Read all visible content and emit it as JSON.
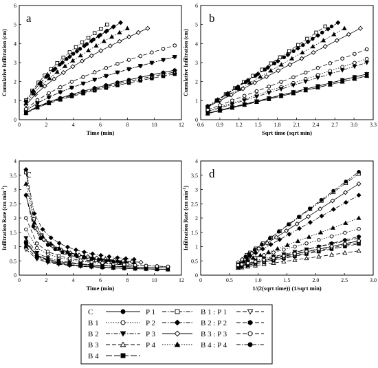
{
  "figure": {
    "legend": {
      "entries": [
        {
          "label": "C",
          "marker": "circle-filled",
          "dash": "solid"
        },
        {
          "label": "B 1",
          "marker": "circle-open",
          "dash": "dotted"
        },
        {
          "label": "B 2",
          "marker": "tri-down-filled",
          "dash": "dashdot"
        },
        {
          "label": "B 3",
          "marker": "tri-up-open",
          "dash": "dashed"
        },
        {
          "label": "B 4",
          "marker": "square-filled",
          "dash": "longdash"
        },
        {
          "label": "P 1",
          "marker": "square-open",
          "dash": "dashdot"
        },
        {
          "label": "P 2",
          "marker": "diamond-filled",
          "dash": "dashdot"
        },
        {
          "label": "P 3",
          "marker": "diamond-open",
          "dash": "solid"
        },
        {
          "label": "P 4",
          "marker": "tri-up-filled",
          "dash": "dotted"
        },
        {
          "label": "B 1 : P 1",
          "marker": "tri-down-open",
          "dash": "dashed"
        },
        {
          "label": "B 2 : P 2",
          "marker": "hexagon-filled",
          "dash": "dashed"
        },
        {
          "label": "B 3 : P 3",
          "marker": "hexagon-open",
          "dash": "dashed"
        },
        {
          "label": "B 4 : P 4",
          "marker": "circle-filled",
          "dash": "dashdot"
        }
      ]
    }
  },
  "chart_data": [
    {
      "panel": "a",
      "type": "line",
      "xlabel": "Time (min)",
      "ylabel": "Cumulative Infiltration (cm)",
      "xlim": [
        0,
        12
      ],
      "ylim": [
        0,
        6
      ],
      "xticks": [
        "0",
        "2",
        "4",
        "6",
        "8",
        "10",
        "12"
      ],
      "yticks": [
        "0",
        "1",
        "2",
        "3",
        "4",
        "5",
        "6"
      ],
      "grid": false,
      "model": "power",
      "series": [
        {
          "name": "C",
          "xmax": 11.5,
          "y_end": 2.6
        },
        {
          "name": "B 1",
          "xmax": 11.5,
          "y_end": 3.3
        },
        {
          "name": "B 2",
          "xmax": 11.5,
          "y_end": 3.3
        },
        {
          "name": "B 3",
          "xmax": 11.5,
          "y_end": 2.5
        },
        {
          "name": "B 4",
          "xmax": 11.5,
          "y_end": 2.4
        },
        {
          "name": "P 1",
          "xmax": 6.5,
          "y_end": 5.0
        },
        {
          "name": "P 2",
          "xmax": 7.5,
          "y_end": 5.1
        },
        {
          "name": "P 3",
          "xmax": 9.5,
          "y_end": 4.8
        },
        {
          "name": "P 4",
          "xmax": 8.0,
          "y_end": 4.8
        },
        {
          "name": "B 1 : P 1",
          "xmax": 11.5,
          "y_end": 2.5
        },
        {
          "name": "B 2 : P 2",
          "xmax": 11.5,
          "y_end": 2.6
        },
        {
          "name": "B 3 : P 3",
          "xmax": 11.5,
          "y_end": 3.9
        },
        {
          "name": "B 4 : P 4",
          "xmax": 7.0,
          "y_end": 4.9
        }
      ]
    },
    {
      "panel": "b",
      "type": "line",
      "xlabel": "Sqrt time (sqrt min)",
      "ylabel": "Cumulative Infiltration (cm)",
      "xlim": [
        0.6,
        3.3
      ],
      "ylim": [
        0,
        6
      ],
      "xticks": [
        "0.6",
        "0.9",
        "1.2",
        "1.5",
        "1.8",
        "2.1",
        "2.4",
        "2.7",
        "3.0",
        "3.3"
      ],
      "yticks": [
        "0",
        "1",
        "2",
        "3",
        "4",
        "5",
        "6"
      ],
      "grid": false,
      "model": "sqrt",
      "series": [
        {
          "name": "C",
          "xmax": 3.2,
          "y_end": 2.4
        },
        {
          "name": "B 1",
          "xmax": 3.2,
          "y_end": 3.2
        },
        {
          "name": "B 2",
          "xmax": 3.2,
          "y_end": 3.0
        },
        {
          "name": "B 3",
          "xmax": 3.2,
          "y_end": 2.3
        },
        {
          "name": "B 4",
          "xmax": 3.2,
          "y_end": 2.3
        },
        {
          "name": "P 1",
          "xmax": 2.55,
          "y_end": 4.9
        },
        {
          "name": "P 2",
          "xmax": 2.75,
          "y_end": 5.1
        },
        {
          "name": "P 3",
          "xmax": 3.1,
          "y_end": 4.8
        },
        {
          "name": "P 4",
          "xmax": 2.85,
          "y_end": 4.8
        },
        {
          "name": "B 1 : P 1",
          "xmax": 3.2,
          "y_end": 2.4
        },
        {
          "name": "B 2 : P 2",
          "xmax": 3.2,
          "y_end": 2.4
        },
        {
          "name": "B 3 : P 3",
          "xmax": 3.2,
          "y_end": 3.7
        },
        {
          "name": "B 4 : P 4",
          "xmax": 2.65,
          "y_end": 4.9
        }
      ]
    },
    {
      "panel": "c",
      "type": "line",
      "xlabel": "Time (min)",
      "ylabel": "Infiltration Rate (cm min",
      "ylabel_sup": "-1",
      "ylabel_close": ")",
      "xlim": [
        0,
        12
      ],
      "ylim": [
        0,
        4
      ],
      "xticks": [
        "0",
        "2",
        "4",
        "6",
        "8",
        "10",
        "12"
      ],
      "yticks": [
        "0",
        "0.5",
        "1",
        "1.5",
        "2",
        "2.5",
        "3",
        "3.5",
        "4"
      ],
      "grid": false,
      "model": "power",
      "series": [
        {
          "name": "C",
          "xmax": 11.0,
          "y_start": 1.1,
          "y_end": 0.25
        },
        {
          "name": "B 1",
          "xmax": 11.0,
          "y_start": 1.6,
          "y_end": 0.3
        },
        {
          "name": "B 2",
          "xmax": 11.0,
          "y_start": 1.3,
          "y_end": 0.25
        },
        {
          "name": "B 3",
          "xmax": 11.0,
          "y_start": 1.2,
          "y_end": 0.2
        },
        {
          "name": "B 4",
          "xmax": 11.0,
          "y_start": 1.15,
          "y_end": 0.2
        },
        {
          "name": "P 1",
          "xmax": 8.0,
          "y_start": 3.6,
          "y_end": 0.4
        },
        {
          "name": "P 2",
          "xmax": 8.5,
          "y_start": 3.7,
          "y_end": 0.55
        },
        {
          "name": "P 3",
          "xmax": 9.0,
          "y_start": 2.8,
          "y_end": 0.45
        },
        {
          "name": "P 4",
          "xmax": 8.5,
          "y_start": 3.2,
          "y_end": 0.45
        },
        {
          "name": "B 1 : P 1",
          "xmax": 11.0,
          "y_start": 0.9,
          "y_end": 0.2
        },
        {
          "name": "B 2 : P 2",
          "xmax": 11.0,
          "y_start": 1.0,
          "y_end": 0.2
        },
        {
          "name": "B 3 : P 3",
          "xmax": 11.0,
          "y_start": 2.0,
          "y_end": 0.3
        },
        {
          "name": "B 4 : P 4",
          "xmax": 7.5,
          "y_start": 2.8,
          "y_end": 0.45
        }
      ]
    },
    {
      "panel": "d",
      "type": "line",
      "xlabel": "1/(2(sqrt time)) (1/sqrt min)",
      "ylabel": "Infiltration Rate (cm min",
      "ylabel_sup": "-1",
      "ylabel_close": ")",
      "xlim": [
        0,
        3.0
      ],
      "ylim": [
        0,
        4
      ],
      "xticks": [
        "0",
        "0.5",
        "1.0",
        "1.5",
        "2.0",
        "2.5",
        "3.0"
      ],
      "yticks": [
        "0",
        "0.5",
        "1",
        "1.5",
        "2",
        "2.5",
        "3",
        "3.5",
        "4"
      ],
      "grid": false,
      "model": "linear",
      "series": [
        {
          "name": "C",
          "xmin": 0.65,
          "y_start": 0.32,
          "y_end": 1.2
        },
        {
          "name": "B 1",
          "xmin": 0.65,
          "y_start": 0.45,
          "y_end": 1.62
        },
        {
          "name": "B 2",
          "xmin": 0.65,
          "y_start": 0.38,
          "y_end": 1.3
        },
        {
          "name": "B 3",
          "xmin": 0.65,
          "y_start": 0.25,
          "y_end": 0.85
        },
        {
          "name": "B 4",
          "xmin": 0.65,
          "y_start": 0.28,
          "y_end": 1.1
        },
        {
          "name": "P 1",
          "xmin": 0.8,
          "y_start": 0.7,
          "y_end": 3.55
        },
        {
          "name": "P 2",
          "xmin": 0.8,
          "y_start": 0.6,
          "y_end": 2.8
        },
        {
          "name": "P 3",
          "xmin": 0.72,
          "y_start": 0.55,
          "y_end": 3.2
        },
        {
          "name": "P 4",
          "xmin": 0.75,
          "y_start": 0.48,
          "y_end": 2.0
        },
        {
          "name": "B 1 : P 1",
          "xmin": 0.65,
          "y_start": 0.28,
          "y_end": 1.15
        },
        {
          "name": "B 2 : P 2",
          "xmin": 0.65,
          "y_start": 0.3,
          "y_end": 1.35
        },
        {
          "name": "B 3 : P 3",
          "xmin": 0.65,
          "y_start": 0.35,
          "y_end": 1.2
        },
        {
          "name": "B 4 : P 4",
          "xmin": 0.78,
          "y_start": 0.65,
          "y_end": 3.62
        }
      ]
    }
  ]
}
